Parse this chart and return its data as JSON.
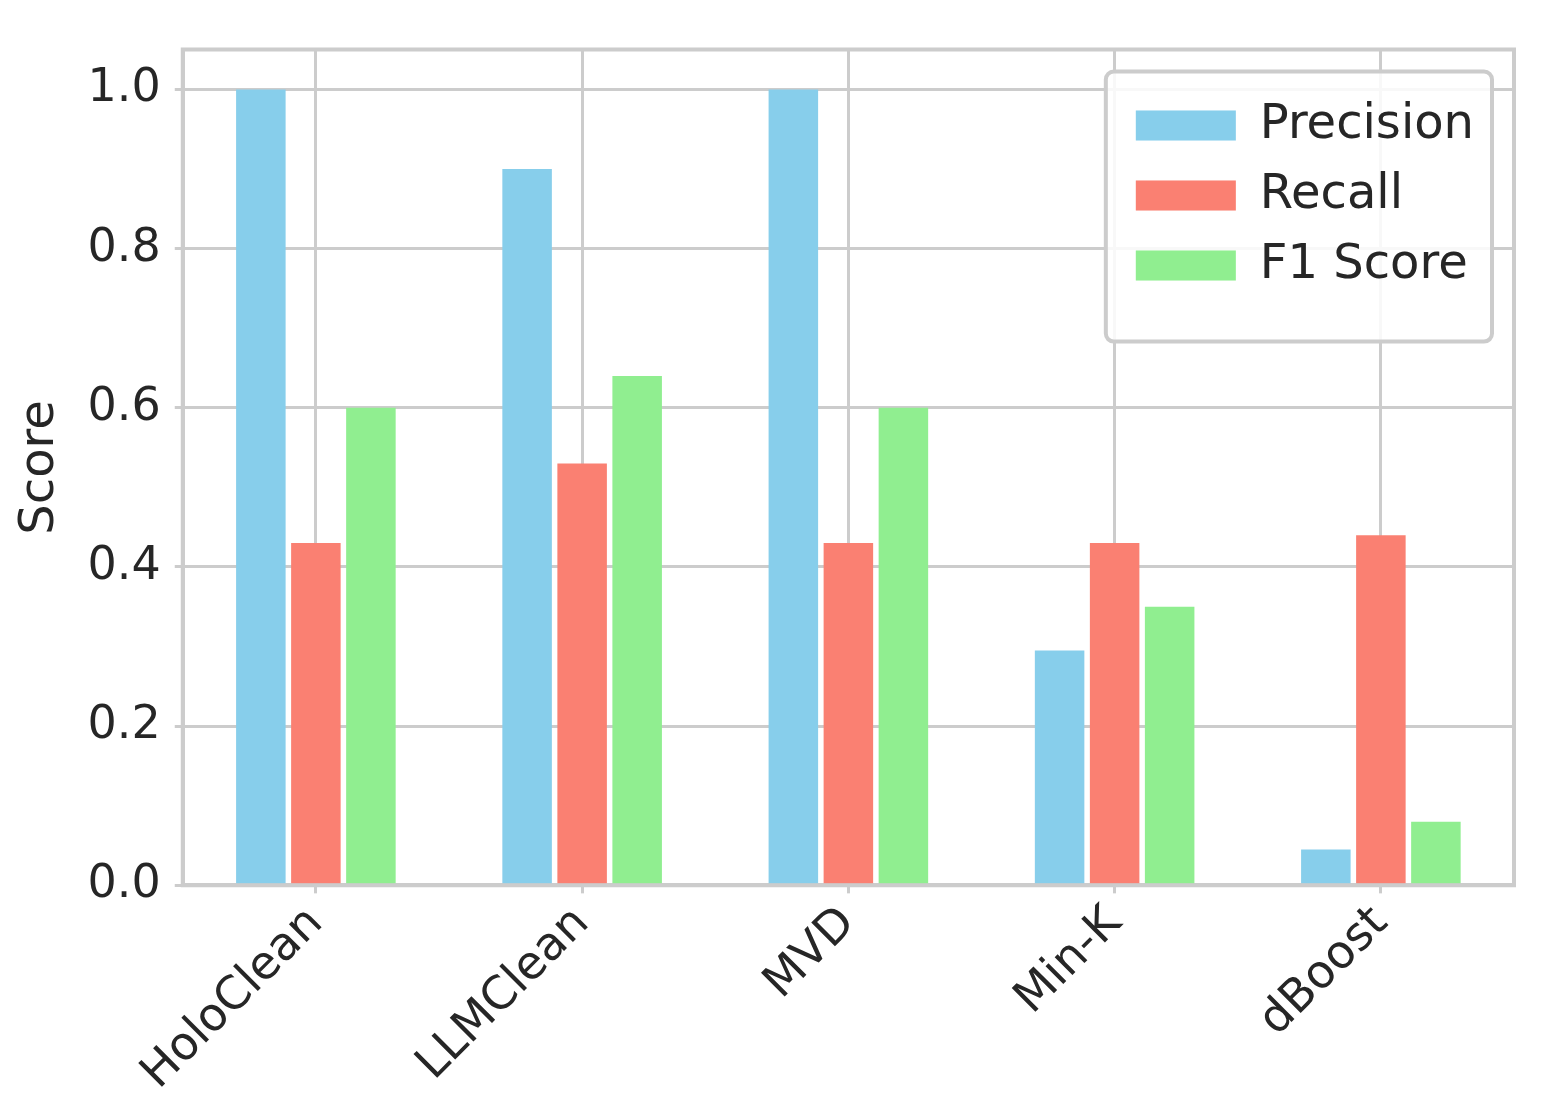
{
  "chart_data": {
    "type": "bar",
    "ylabel": "Score",
    "categories": [
      "HoloClean",
      "LLMClean",
      "MVD",
      "Min-K",
      "dBoost"
    ],
    "series": [
      {
        "name": "Precision",
        "color": "#87ceeb",
        "values": [
          1.0,
          0.9,
          1.0,
          0.295,
          0.045
        ]
      },
      {
        "name": "Recall",
        "color": "#fa8072",
        "values": [
          0.43,
          0.53,
          0.43,
          0.43,
          0.44
        ]
      },
      {
        "name": "F1 Score",
        "color": "#90ee90",
        "values": [
          0.6,
          0.64,
          0.6,
          0.35,
          0.08
        ]
      }
    ],
    "ylim": [
      0,
      1.05
    ],
    "yticks": [
      {
        "value": 0,
        "label": "0.0"
      },
      {
        "value": 0.2,
        "label": "0.2"
      },
      {
        "value": 0.4,
        "label": "0.4"
      },
      {
        "value": 0.6,
        "label": "0.6"
      },
      {
        "value": 0.8,
        "label": "0.8"
      },
      {
        "value": 1,
        "label": "1.0"
      }
    ],
    "grid": true,
    "legend": "top right"
  }
}
